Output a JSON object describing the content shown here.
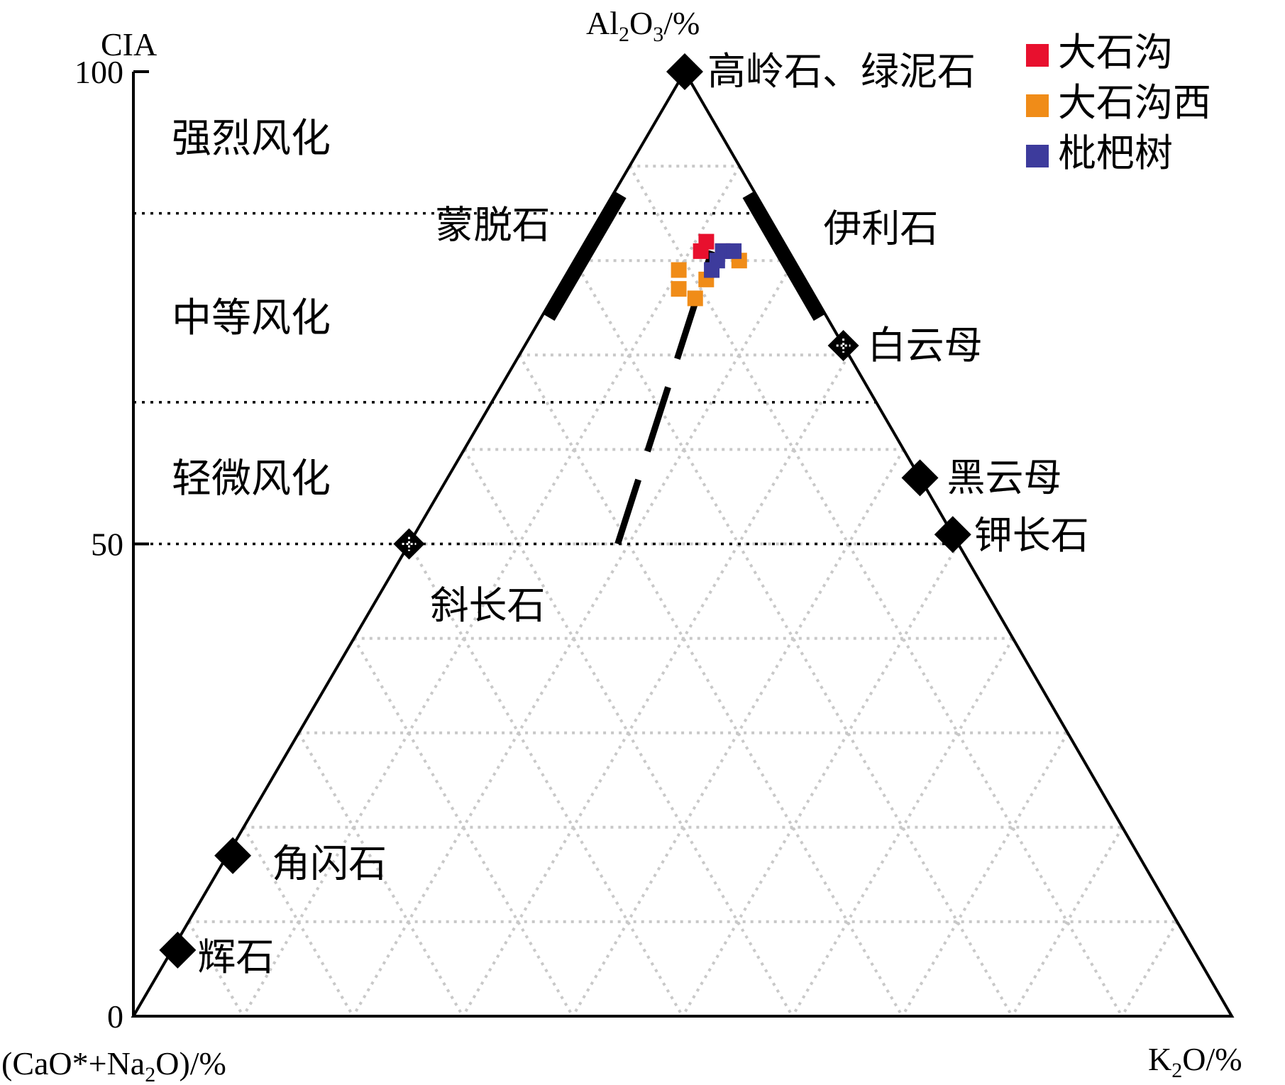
{
  "chart_data": {
    "type": "scatter",
    "subtype": "ternary-A-CN-K",
    "vertex_labels": {
      "top_prefix": "Al",
      "top_sub1": "2",
      "top_mid": "O",
      "top_sub2": "3",
      "top_suffix": "/%",
      "left_prefix": "(CaO*+Na",
      "left_sub": "2",
      "left_suffix": "O)/%",
      "right_prefix": "K",
      "right_sub": "2",
      "right_suffix": "O/%"
    },
    "cia_axis": {
      "title": "CIA",
      "ticks": [
        "100",
        "50",
        "0"
      ],
      "tick_values": [
        100,
        50,
        0
      ],
      "range": [
        0,
        100
      ],
      "boundaries": [
        85,
        65,
        50
      ]
    },
    "zones": [
      {
        "label": "强烈风化",
        "cia_center": 93
      },
      {
        "label": "中等风化",
        "cia_center": 74
      },
      {
        "label": "轻微风化",
        "cia_center": 57
      }
    ],
    "grid": true,
    "grid_step": 10,
    "minerals": [
      {
        "name": "高岭石、绿泥石",
        "A": 100,
        "CN": 0,
        "K": 0,
        "marker": "diamond"
      },
      {
        "name": "白云母",
        "A": 71,
        "CN": 0,
        "K": 29,
        "marker": "diamond-grid"
      },
      {
        "name": "黑云母",
        "A": 57,
        "CN": 0,
        "K": 43,
        "marker": "diamond"
      },
      {
        "name": "钾长石",
        "A": 51,
        "CN": 0,
        "K": 49,
        "marker": "diamond"
      },
      {
        "name": "斜长石",
        "A": 50,
        "CN": 50,
        "K": 0,
        "marker": "diamond-grid"
      },
      {
        "name": "角闪石",
        "A": 17,
        "CN": 83,
        "K": 0,
        "marker": "diamond"
      },
      {
        "name": "辉石",
        "A": 7,
        "CN": 93,
        "K": 0,
        "marker": "diamond"
      }
    ],
    "mineral_ranges": [
      {
        "name": "蒙脱石",
        "from": {
          "A": 87,
          "CN": 13,
          "K": 0
        },
        "to": {
          "A": 74,
          "CN": 26,
          "K": 0
        }
      },
      {
        "name": "伊利石",
        "from": {
          "A": 87,
          "CN": 0,
          "K": 13
        },
        "to": {
          "A": 74,
          "CN": 0,
          "K": 26
        }
      }
    ],
    "trend_line": {
      "from": {
        "A": 50,
        "CN": 31,
        "K": 19
      },
      "to": {
        "A": 81,
        "CN": 7,
        "K": 12
      }
    },
    "series": [
      {
        "name": "大石沟",
        "color": "#e8102e",
        "points": [
          {
            "A": 82,
            "CN": 7,
            "K": 11
          },
          {
            "A": 81,
            "CN": 8,
            "K": 11
          },
          {
            "A": 81,
            "CN": 6,
            "K": 13
          }
        ]
      },
      {
        "name": "大石沟西",
        "color": "#f08c18",
        "points": [
          {
            "A": 79,
            "CN": 11,
            "K": 10
          },
          {
            "A": 77,
            "CN": 12,
            "K": 11
          },
          {
            "A": 76,
            "CN": 11,
            "K": 13
          },
          {
            "A": 80,
            "CN": 5,
            "K": 15
          },
          {
            "A": 78,
            "CN": 9,
            "K": 13
          }
        ]
      },
      {
        "name": "枇杷树",
        "color": "#3d3b9c",
        "points": [
          {
            "A": 81,
            "CN": 6,
            "K": 13
          },
          {
            "A": 80,
            "CN": 7,
            "K": 13
          },
          {
            "A": 79,
            "CN": 8,
            "K": 13
          },
          {
            "A": 81,
            "CN": 5,
            "K": 14
          }
        ]
      }
    ],
    "legend_position": "top-right"
  }
}
